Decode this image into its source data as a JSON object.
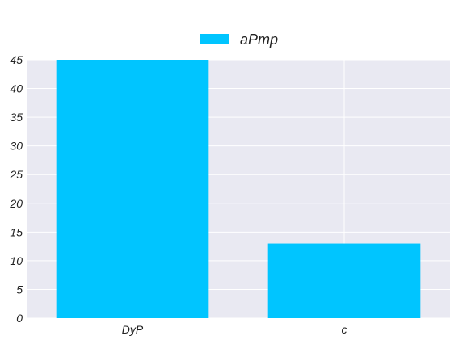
{
  "chart_data": {
    "type": "bar",
    "categories": [
      "DyP",
      "c"
    ],
    "series": [
      {
        "name": "aPmp",
        "values": [
          45,
          13
        ]
      }
    ],
    "ylim": [
      0,
      45
    ],
    "yticks": [
      0,
      5,
      10,
      15,
      20,
      25,
      30,
      35,
      40,
      45
    ],
    "grid": true,
    "legend_position": "top-center",
    "colors": {
      "bar": "#00c5ff",
      "plot_background": "#e9e9f2",
      "grid": "#ffffff"
    }
  }
}
